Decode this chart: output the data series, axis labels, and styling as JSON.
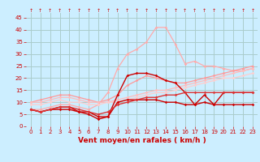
{
  "xlabel": "Vent moyen/en rafales ( km/h )",
  "background_color": "#cceeff",
  "grid_color": "#aacccc",
  "xlim": [
    -0.5,
    23.5
  ],
  "ylim": [
    0,
    47
  ],
  "yticks": [
    0,
    5,
    10,
    15,
    20,
    25,
    30,
    35,
    40,
    45
  ],
  "xticks": [
    0,
    1,
    2,
    3,
    4,
    5,
    6,
    7,
    8,
    9,
    10,
    11,
    12,
    13,
    14,
    15,
    16,
    17,
    18,
    19,
    20,
    21,
    22,
    23
  ],
  "lines": [
    {
      "x": [
        0,
        1,
        2,
        3,
        4,
        5,
        6,
        7,
        8,
        9,
        10,
        11,
        12,
        13,
        14,
        15,
        16,
        17,
        18,
        19,
        20,
        21,
        22,
        23
      ],
      "y": [
        7,
        7,
        8,
        9,
        9,
        8,
        7,
        9,
        14,
        24,
        30,
        32,
        35,
        41,
        41,
        34,
        26,
        27,
        25,
        25,
        24,
        23,
        23,
        24
      ],
      "color": "#ffaaaa",
      "lw": 0.9
    },
    {
      "x": [
        0,
        1,
        2,
        3,
        4,
        5,
        6,
        7,
        8,
        9,
        10,
        11,
        12,
        13,
        14,
        15,
        16,
        17,
        18,
        19,
        20,
        21,
        22,
        23
      ],
      "y": [
        10,
        11,
        12,
        13,
        13,
        12,
        11,
        10,
        11,
        13,
        17,
        19,
        21,
        20,
        19,
        18,
        18,
        19,
        20,
        21,
        22,
        23,
        24,
        25
      ],
      "color": "#ff9999",
      "lw": 0.9
    },
    {
      "x": [
        0,
        1,
        2,
        3,
        4,
        5,
        6,
        7,
        8,
        9,
        10,
        11,
        12,
        13,
        14,
        15,
        16,
        17,
        18,
        19,
        20,
        21,
        22,
        23
      ],
      "y": [
        10,
        10,
        11,
        12,
        12,
        11,
        10,
        10,
        10,
        11,
        12,
        13,
        14,
        15,
        15,
        16,
        17,
        18,
        19,
        20,
        21,
        22,
        23,
        24
      ],
      "color": "#ffbbbb",
      "lw": 0.9
    },
    {
      "x": [
        0,
        1,
        2,
        3,
        4,
        5,
        6,
        7,
        8,
        9,
        10,
        11,
        12,
        13,
        14,
        15,
        16,
        17,
        18,
        19,
        20,
        21,
        22,
        23
      ],
      "y": [
        9,
        9,
        10,
        11,
        10,
        10,
        9,
        9,
        10,
        10,
        11,
        12,
        13,
        14,
        14,
        15,
        16,
        17,
        18,
        19,
        20,
        20,
        21,
        22
      ],
      "color": "#ffcccc",
      "lw": 0.9
    },
    {
      "x": [
        0,
        1,
        2,
        3,
        4,
        5,
        6,
        7,
        8,
        9,
        10,
        11,
        12,
        13,
        14,
        15,
        16,
        17,
        18,
        19,
        20,
        21,
        22,
        23
      ],
      "y": [
        7,
        6,
        7,
        8,
        8,
        6,
        6,
        4,
        4,
        13,
        21,
        22,
        22,
        21,
        19,
        18,
        14,
        9,
        13,
        9,
        14,
        14,
        14,
        14
      ],
      "color": "#cc0000",
      "lw": 1.0
    },
    {
      "x": [
        0,
        1,
        2,
        3,
        4,
        5,
        6,
        7,
        8,
        9,
        10,
        11,
        12,
        13,
        14,
        15,
        16,
        17,
        18,
        19,
        20,
        21,
        22,
        23
      ],
      "y": [
        7,
        6,
        7,
        7,
        7,
        6,
        5,
        3,
        4,
        10,
        11,
        11,
        11,
        11,
        10,
        10,
        9,
        9,
        10,
        9,
        9,
        9,
        9,
        9
      ],
      "color": "#cc0000",
      "lw": 1.0
    },
    {
      "x": [
        0,
        1,
        2,
        3,
        4,
        5,
        6,
        7,
        8,
        9,
        10,
        11,
        12,
        13,
        14,
        15,
        16,
        17,
        18,
        19,
        20,
        21,
        22,
        23
      ],
      "y": [
        7,
        6,
        7,
        8,
        8,
        7,
        6,
        5,
        6,
        9,
        10,
        11,
        12,
        12,
        13,
        13,
        14,
        14,
        14,
        14,
        14,
        14,
        14,
        14
      ],
      "color": "#dd3333",
      "lw": 1.0
    }
  ],
  "arrow_symbol": "↑",
  "arrow_color": "#cc0000",
  "label_color": "#cc0000",
  "tick_fontsize": 5,
  "xlabel_fontsize": 6.5
}
